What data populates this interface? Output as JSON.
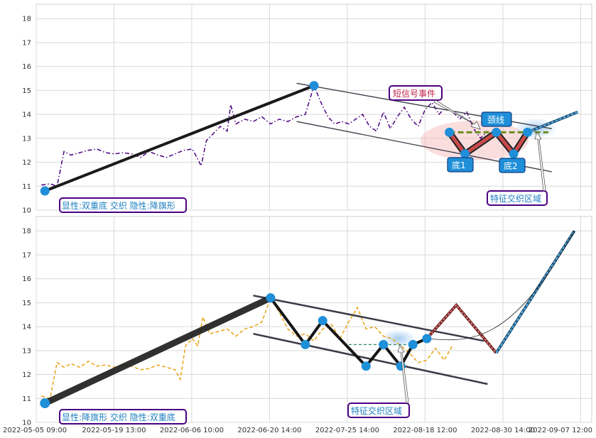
{
  "chart_data": [
    {
      "type": "line",
      "panel": "top",
      "ylim": [
        10,
        18.6
      ],
      "yticks": [
        10,
        11,
        12,
        13,
        14,
        15,
        16,
        17,
        18
      ],
      "grid": true,
      "price_series": {
        "color": "#4b0082",
        "style": "dash-dot",
        "points": [
          [
            0.3,
            11.05
          ],
          [
            0.8,
            11.1
          ],
          [
            1.2,
            11.0
          ],
          [
            1.6,
            12.45
          ],
          [
            2.0,
            12.3
          ],
          [
            2.5,
            12.4
          ],
          [
            3.0,
            12.5
          ],
          [
            3.5,
            12.55
          ],
          [
            4.0,
            12.4
          ],
          [
            4.5,
            12.35
          ],
          [
            5.0,
            12.4
          ],
          [
            5.5,
            12.35
          ],
          [
            6.0,
            12.2
          ],
          [
            6.5,
            12.45
          ],
          [
            7.0,
            12.3
          ],
          [
            7.5,
            12.2
          ],
          [
            8.0,
            12.35
          ],
          [
            8.5,
            12.5
          ],
          [
            9.0,
            12.55
          ],
          [
            9.5,
            11.85
          ],
          [
            9.8,
            12.9
          ],
          [
            10.2,
            13.2
          ],
          [
            10.6,
            13.5
          ],
          [
            11.0,
            13.3
          ],
          [
            11.2,
            14.4
          ],
          [
            11.5,
            13.6
          ],
          [
            12.0,
            13.8
          ],
          [
            12.5,
            13.7
          ],
          [
            13.0,
            13.9
          ],
          [
            13.5,
            13.6
          ],
          [
            14.0,
            13.8
          ],
          [
            14.5,
            13.7
          ],
          [
            15.0,
            13.9
          ],
          [
            15.5,
            14.0
          ],
          [
            16.0,
            15.2
          ],
          [
            16.4,
            14.5
          ],
          [
            16.8,
            13.9
          ],
          [
            17.2,
            13.6
          ],
          [
            17.6,
            13.7
          ],
          [
            18.0,
            13.6
          ],
          [
            18.4,
            13.8
          ],
          [
            18.8,
            14.0
          ],
          [
            19.2,
            13.5
          ],
          [
            19.6,
            13.3
          ],
          [
            20.0,
            14.1
          ],
          [
            20.4,
            13.4
          ],
          [
            20.8,
            13.9
          ],
          [
            21.2,
            14.3
          ],
          [
            21.6,
            13.8
          ],
          [
            22.0,
            13.5
          ],
          [
            22.4,
            14.2
          ],
          [
            22.8,
            14.5
          ],
          [
            23.2,
            14.0
          ],
          [
            23.6,
            14.3
          ],
          [
            24.0,
            14.1
          ],
          [
            24.4,
            13.8
          ],
          [
            24.8,
            14.1
          ],
          [
            25.2,
            13.4
          ],
          [
            25.6,
            13.0
          ],
          [
            26.0,
            13.3
          ]
        ]
      },
      "trend_line": [
        [
          0.5,
          10.8
        ],
        [
          16.0,
          15.2
        ]
      ],
      "channel_upper": [
        [
          15.0,
          15.3
        ],
        [
          29.7,
          13.4
        ]
      ],
      "channel_lower": [
        [
          15.0,
          13.7
        ],
        [
          29.7,
          11.6
        ]
      ],
      "pattern_points": [
        [
          0.5,
          10.8
        ],
        [
          16.0,
          15.2
        ],
        [
          23.8,
          13.25
        ],
        [
          24.7,
          12.35
        ],
        [
          26.5,
          13.25
        ],
        [
          27.5,
          12.35
        ],
        [
          28.3,
          13.25
        ]
      ],
      "neckline": [
        [
          23.8,
          13.25
        ],
        [
          29.5,
          13.25
        ]
      ],
      "projection": [
        [
          28.3,
          13.25
        ],
        [
          31.2,
          14.1
        ]
      ],
      "labels": {
        "pattern_info": "显性:双重底 交织 隐性:降旗形",
        "event": "短信号事件",
        "neckline": "颈线",
        "bottom1": "底1",
        "bottom2": "底2",
        "zone": "特征交织区域"
      }
    },
    {
      "type": "line",
      "panel": "bottom",
      "ylim": [
        10,
        18.6
      ],
      "yticks": [
        10,
        11,
        12,
        13,
        14,
        15,
        16,
        17,
        18
      ],
      "grid": true,
      "xticks": [
        "2022-05-05 09:00",
        "2022-05-19 13:00",
        "2022-06-06 10:00",
        "2022-06-20 14:00",
        "2022-07-25 14:00",
        "2022-08-18 12:00",
        "2022-08-30 14:00",
        "2022-09-07 12:00"
      ],
      "price_series": {
        "color": "#e8a317",
        "style": "dashed",
        "points": [
          [
            0.3,
            11.1
          ],
          [
            0.8,
            11.0
          ],
          [
            1.2,
            12.5
          ],
          [
            1.6,
            12.3
          ],
          [
            2.0,
            12.45
          ],
          [
            2.5,
            12.3
          ],
          [
            3.0,
            12.55
          ],
          [
            3.5,
            12.35
          ],
          [
            4.0,
            12.4
          ],
          [
            4.5,
            12.3
          ],
          [
            5.0,
            12.4
          ],
          [
            5.5,
            12.35
          ],
          [
            6.0,
            12.2
          ],
          [
            6.5,
            12.25
          ],
          [
            7.0,
            12.4
          ],
          [
            7.5,
            12.3
          ],
          [
            8.0,
            12.2
          ],
          [
            8.3,
            11.8
          ],
          [
            8.6,
            13.2
          ],
          [
            9.0,
            13.5
          ],
          [
            9.3,
            13.2
          ],
          [
            9.6,
            14.4
          ],
          [
            10.0,
            13.7
          ],
          [
            10.5,
            13.8
          ],
          [
            11.0,
            13.9
          ],
          [
            11.5,
            13.6
          ],
          [
            12.0,
            13.9
          ],
          [
            12.5,
            14.0
          ],
          [
            13.0,
            14.2
          ],
          [
            13.5,
            15.2
          ],
          [
            14.0,
            14.6
          ],
          [
            14.5,
            13.9
          ],
          [
            15.0,
            13.6
          ],
          [
            15.5,
            13.7
          ],
          [
            16.0,
            13.4
          ],
          [
            16.5,
            13.9
          ],
          [
            17.0,
            14.1
          ],
          [
            17.5,
            13.5
          ],
          [
            18.0,
            14.2
          ],
          [
            18.5,
            14.8
          ],
          [
            19.0,
            13.9
          ],
          [
            19.5,
            14.0
          ],
          [
            20.0,
            13.6
          ],
          [
            20.5,
            13.5
          ],
          [
            21.0,
            13.2
          ],
          [
            21.5,
            12.9
          ],
          [
            22.0,
            12.5
          ],
          [
            22.5,
            12.6
          ],
          [
            23.0,
            13.1
          ],
          [
            23.5,
            12.6
          ],
          [
            24.0,
            13.25
          ]
        ]
      },
      "trend_line": [
        [
          0.5,
          10.8
        ],
        [
          13.5,
          15.2
        ]
      ],
      "channel_upper": [
        [
          12.5,
          15.3
        ],
        [
          25.8,
          13.4
        ]
      ],
      "channel_lower": [
        [
          12.5,
          13.7
        ],
        [
          26.0,
          11.6
        ]
      ],
      "pattern_points": [
        [
          0.5,
          10.8
        ],
        [
          13.5,
          15.2
        ],
        [
          15.5,
          13.25
        ],
        [
          16.5,
          14.25
        ],
        [
          19.0,
          12.35
        ],
        [
          20.0,
          13.25
        ],
        [
          21.0,
          12.35
        ],
        [
          21.7,
          13.25
        ],
        [
          22.5,
          13.5
        ]
      ],
      "neckline": [
        [
          18.0,
          13.25
        ],
        [
          22.0,
          13.25
        ]
      ],
      "projection": [
        [
          22.5,
          13.5
        ],
        [
          24.2,
          14.9
        ],
        [
          26.5,
          12.9
        ],
        [
          31.0,
          18.0
        ]
      ],
      "labels": {
        "pattern_info": "显性:降旗形 交织 隐性:双重底",
        "zone": "特征交织区域"
      }
    }
  ]
}
